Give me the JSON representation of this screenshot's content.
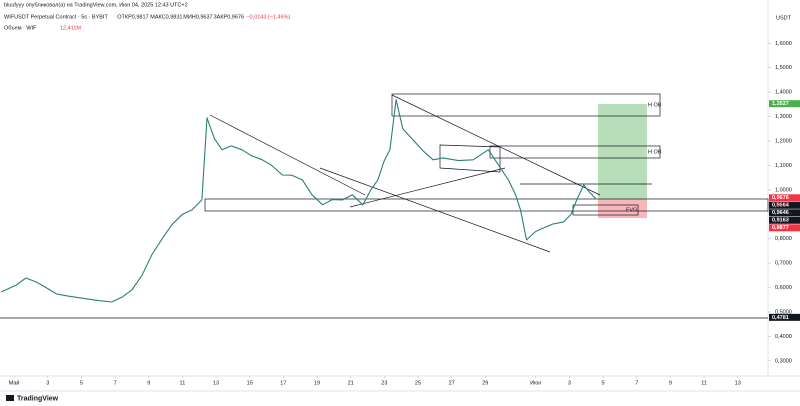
{
  "chart_data": {
    "type": "line",
    "author_line": "bluufyyy опубликовал(а) на TradingView.com, Июн 04, 2025 12:43 UTC+2",
    "title": "WIFUSDT Perpetual Contract · 5s · BYBIT",
    "ohlc": [
      "ОТКР0,9817",
      "МАКС0,9831",
      "МИН0,9637",
      "ЗАКР0,9676",
      "−0,0143 (−1,46%)"
    ],
    "volume_title": "Объем · WIF",
    "volume_value": "12,411M",
    "y_axis_unit": "USDT",
    "brand": "TradingView",
    "annotations": [
      "H OB",
      "H OB",
      "FVG"
    ],
    "countdown": "15:17",
    "color": "#2a7f77",
    "grid": false,
    "x": [
      0.22,
      1.12,
      1.7,
      2.31,
      2.9,
      3.51,
      4.2,
      5.0,
      5.9,
      6.79,
      7.4,
      7.99,
      8.6,
      9.18,
      9.8,
      10.37,
      11.0,
      11.57,
      12.16,
      12.46,
      12.9,
      13.36,
      13.9,
      14.55,
      15.1,
      15.75,
      16.3,
      16.94,
      17.5,
      18.13,
      18.7,
      19.33,
      19.9,
      20.52,
      21.1,
      21.72,
      22.2,
      22.61,
      23.0,
      23.33,
      23.7,
      24.1,
      24.7,
      25.3,
      25.9,
      26.49,
      27.4,
      28.28,
      29.18,
      29.8,
      30.37,
      30.8,
      31.09,
      31.45,
      32.0,
      32.46,
      33.0,
      33.66,
      34.1,
      34.43,
      34.85,
      35.2,
      35.57
    ],
    "values": [
      0.582,
      0.61,
      0.639,
      0.623,
      0.6,
      0.574,
      0.565,
      0.557,
      0.548,
      0.541,
      0.56,
      0.59,
      0.65,
      0.734,
      0.8,
      0.857,
      0.9,
      0.918,
      0.959,
      1.295,
      1.21,
      1.164,
      1.18,
      1.164,
      1.14,
      1.123,
      1.1,
      1.061,
      1.06,
      1.041,
      0.98,
      0.939,
      0.96,
      0.959,
      0.98,
      0.939,
      1.0,
      1.041,
      1.12,
      1.164,
      1.369,
      1.25,
      1.205,
      1.16,
      1.123,
      1.131,
      1.12,
      1.123,
      1.164,
      1.1,
      1.041,
      0.98,
      0.918,
      0.795,
      0.83,
      0.844,
      0.86,
      0.869,
      0.9,
      0.959,
      1.02,
      0.99,
      0.963
    ],
    "xlim": [
      0.16,
      45.8
    ],
    "ylim": [
      0.238,
      1.72
    ],
    "xticks": [
      {
        "value": 1,
        "label": "Май"
      },
      3,
      5,
      7,
      9,
      11,
      13,
      15,
      17,
      19,
      21,
      23,
      25,
      27,
      29,
      {
        "value": 32,
        "label": "Июн"
      },
      {
        "value": 34,
        "label": "3"
      },
      {
        "value": 36,
        "label": "5"
      },
      {
        "value": 38,
        "label": "7"
      },
      {
        "value": 40,
        "label": "9"
      },
      {
        "value": 42,
        "label": "11"
      },
      {
        "value": 44,
        "label": "13"
      }
    ],
    "yticks": [
      {
        "value": 0.3,
        "label": "0,3000"
      },
      {
        "value": 0.4,
        "label": "0,4000"
      },
      {
        "value": 0.5,
        "label": "0,5000"
      },
      {
        "value": 0.6,
        "label": "0,6000"
      },
      {
        "value": 0.7,
        "label": "0,7000"
      },
      {
        "value": 0.8,
        "label": "0,8000"
      },
      {
        "value": 1,
        "label": "1,0000"
      },
      {
        "value": 1.1,
        "label": "1,1000"
      },
      {
        "value": 1.2,
        "label": "1,2000"
      },
      {
        "value": 1.3,
        "label": "1,3000"
      },
      {
        "value": 1.4,
        "label": "1,4000"
      },
      {
        "value": 1.5,
        "label": "1,5000"
      },
      {
        "value": 1.6,
        "label": "1,6000"
      }
    ],
    "price_labels": [
      {
        "value": 1.3527,
        "label": "1,3527",
        "color": "#4caf50"
      },
      {
        "value": 0.9676,
        "label": "0,9676",
        "color": "#f23645"
      },
      {
        "value": 0.8877,
        "label": "0,8877",
        "color": "#f23645"
      },
      {
        "value": 0.9664,
        "label": "0,9664",
        "color": "#131722"
      },
      {
        "value": 0.9646,
        "label": "0,9646",
        "color": "#131722"
      },
      {
        "value": 0.9163,
        "label": "0,9163",
        "color": "#131722"
      },
      {
        "value": 0.4781,
        "label": "0,4781",
        "color": "#131722"
      }
    ]
  }
}
